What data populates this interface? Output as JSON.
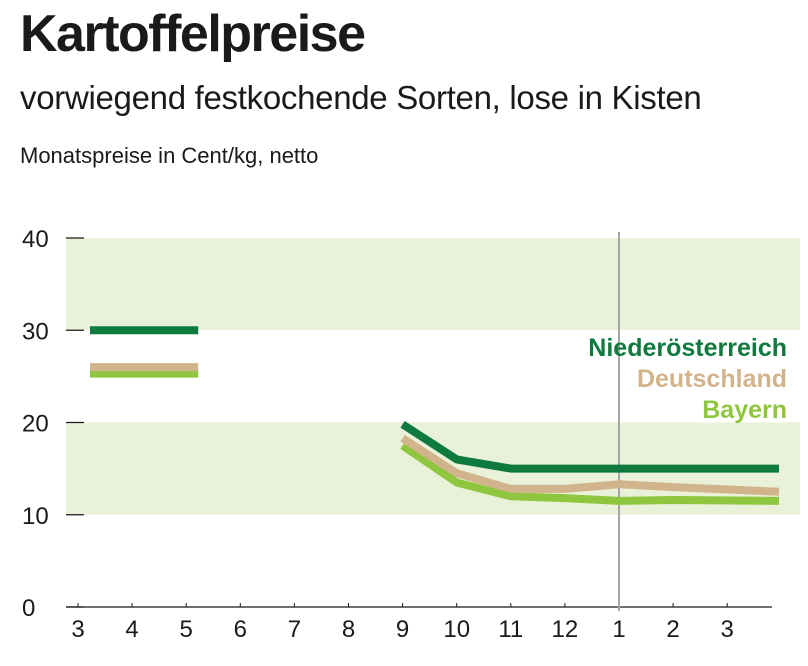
{
  "header": {
    "title": "Kartoffelpreise",
    "subtitle": "vorwiegend festkochende Sorten, lose in Kisten",
    "unit_note": "Monatspreise in Cent/kg, netto"
  },
  "chart_data": {
    "type": "line",
    "title": "Kartoffelpreise",
    "subtitle": "vorwiegend festkochende Sorten, lose in Kisten",
    "ylabel": "Monatspreise in Cent/kg, netto",
    "xlabel": "",
    "x_categories": [
      "3",
      "4",
      "5",
      "6",
      "7",
      "8",
      "9",
      "10",
      "11",
      "12",
      "1",
      "2",
      "3"
    ],
    "ylim": [
      0,
      40
    ],
    "yticks": [
      "0",
      "10",
      "20",
      "30",
      "40"
    ],
    "grid": "alternating horizontal bands",
    "year_marker_at": "1",
    "legend_placement": "right",
    "series": [
      {
        "name": "Niederösterreich",
        "color": "#0f7a3e",
        "segments": [
          [
            [
              3,
              30
            ],
            [
              5,
              30
            ]
          ],
          [
            [
              9,
              19.8
            ],
            [
              10,
              16
            ],
            [
              11,
              15
            ],
            [
              12,
              15
            ],
            [
              1,
              15
            ],
            [
              2,
              15
            ],
            [
              3,
              15
            ]
          ]
        ]
      },
      {
        "name": "Deutschland",
        "color": "#d2b48c",
        "segments": [
          [
            [
              3,
              26
            ],
            [
              5,
              26
            ]
          ],
          [
            [
              9,
              18.3
            ],
            [
              10,
              14.5
            ],
            [
              11,
              12.8
            ],
            [
              12,
              12.8
            ],
            [
              1,
              13.3
            ],
            [
              2,
              13
            ],
            [
              3,
              12.5
            ]
          ]
        ]
      },
      {
        "name": "Bayern",
        "color": "#8ec63f",
        "segments": [
          [
            [
              3,
              25.3
            ],
            [
              5,
              25.3
            ]
          ],
          [
            [
              9,
              17.5
            ],
            [
              10,
              13.5
            ],
            [
              11,
              12
            ],
            [
              12,
              11.8
            ],
            [
              1,
              11.5
            ],
            [
              2,
              11.6
            ],
            [
              3,
              11.5
            ]
          ]
        ]
      }
    ]
  }
}
